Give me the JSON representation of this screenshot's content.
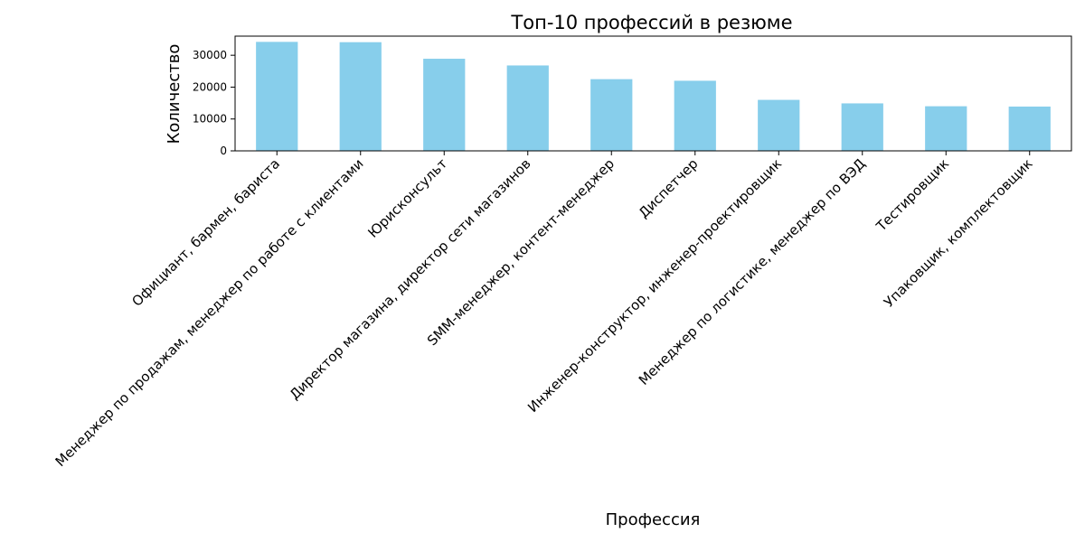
{
  "chart_data": {
    "type": "bar",
    "title": "Топ-10 профессий в резюме",
    "xlabel": "Профессия",
    "ylabel": "Количество",
    "categories": [
      "Официант, бармен, бариста",
      "Менеджер по продажам, менеджер по работе с клиентами",
      "Юрисконсульт",
      "Директор магазина, директор сети магазинов",
      "SMM-менеджер, контент-менеджер",
      "Диспетчер",
      "Инженер-конструктор, инженер-проектировщик",
      "Менеджер по логистике, менеджер по ВЭД",
      "Тестировщик",
      "Упаковщик, комплектовщик"
    ],
    "values": [
      34200,
      34100,
      28900,
      26800,
      22500,
      22000,
      16000,
      14900,
      14000,
      13900
    ],
    "ylim": [
      0,
      36000
    ],
    "yticks": [
      0,
      10000,
      20000,
      30000
    ],
    "ytick_labels": [
      "0",
      "10000",
      "20000",
      "30000"
    ],
    "bar_color": "#87ceeb",
    "grid": false,
    "legend": "none"
  }
}
